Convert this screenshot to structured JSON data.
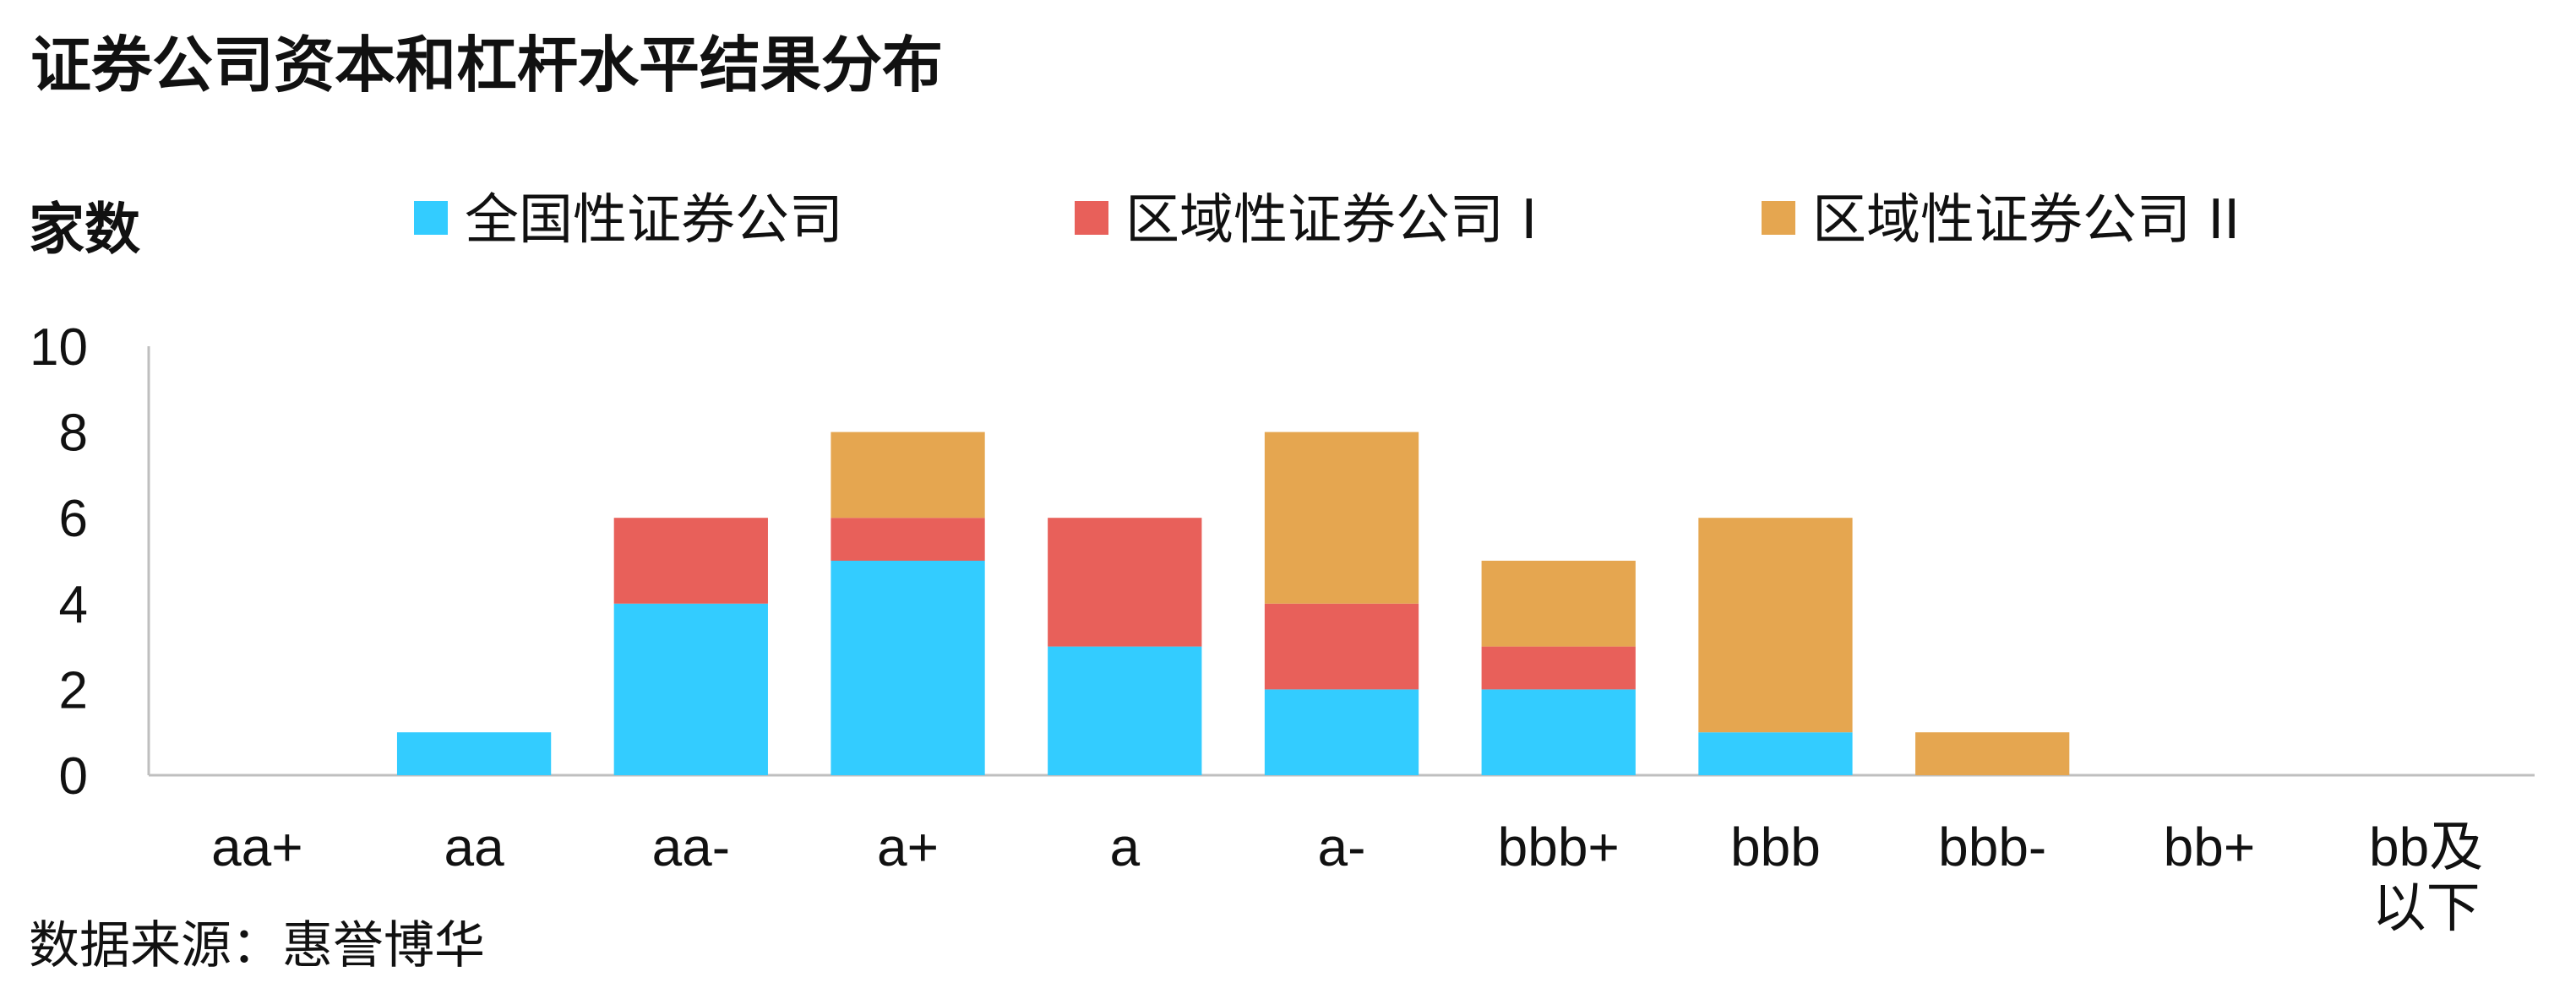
{
  "chart_data": {
    "type": "bar",
    "stacked": true,
    "title": "证券公司资本和杠杆水平结果分布",
    "ylabel": "家数",
    "xlabel": "",
    "ylim": [
      0,
      10
    ],
    "yticks": [
      0,
      2,
      4,
      6,
      8,
      10
    ],
    "grid": false,
    "legend_position": "top",
    "categories": [
      "aa+",
      "aa",
      "aa-",
      "a+",
      "a",
      "a-",
      "bbb+",
      "bbb",
      "bbb-",
      "bb+",
      "bb及以下"
    ],
    "series": [
      {
        "name": "全国性证券公司",
        "color": "#33CCFF",
        "values": [
          0,
          1,
          4,
          5,
          3,
          2,
          2,
          1,
          0,
          0,
          0
        ]
      },
      {
        "name": "区域性证券公司 I",
        "color": "#E8605A",
        "values": [
          0,
          0,
          2,
          1,
          3,
          2,
          1,
          0,
          0,
          0,
          0
        ]
      },
      {
        "name": "区域性证券公司 II",
        "color": "#E5A650",
        "values": [
          0,
          0,
          0,
          2,
          0,
          4,
          2,
          5,
          1,
          0,
          0
        ]
      }
    ],
    "source": "数据来源：惠誉博华"
  }
}
